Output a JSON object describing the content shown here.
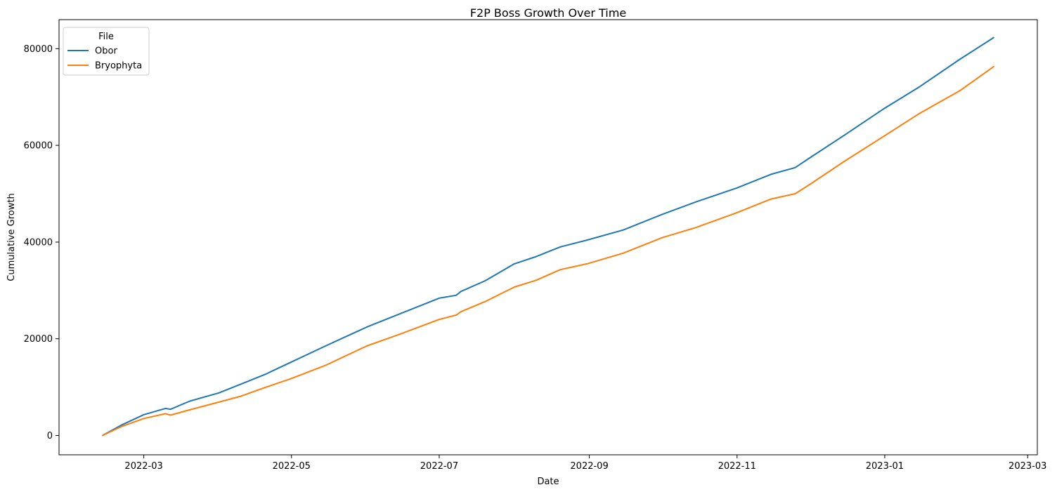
{
  "chart_data": {
    "type": "line",
    "title": "F2P Boss Growth Over Time",
    "xlabel": "Date",
    "ylabel": "Cumulative Growth",
    "xlim": [
      "2022-01-25",
      "2023-03-05"
    ],
    "ylim": [
      -4000,
      86000
    ],
    "x_ticks": [
      "2022-03",
      "2022-05",
      "2022-07",
      "2022-09",
      "2022-11",
      "2023-01",
      "2023-03"
    ],
    "y_ticks": [
      0,
      20000,
      40000,
      60000,
      80000
    ],
    "grid": false,
    "legend": {
      "title": "File",
      "placement": "top-left"
    },
    "x": [
      "2022-02-12",
      "2022-02-20",
      "2022-03-01",
      "2022-03-10",
      "2022-03-12",
      "2022-03-20",
      "2022-04-01",
      "2022-04-10",
      "2022-04-20",
      "2022-05-01",
      "2022-05-15",
      "2022-06-01",
      "2022-06-15",
      "2022-07-01",
      "2022-07-08",
      "2022-07-10",
      "2022-07-20",
      "2022-08-01",
      "2022-08-10",
      "2022-08-20",
      "2022-08-31",
      "2022-09-15",
      "2022-10-01",
      "2022-10-15",
      "2022-11-01",
      "2022-11-15",
      "2022-11-25",
      "2022-12-01",
      "2022-12-15",
      "2023-01-01",
      "2023-01-15",
      "2023-02-01",
      "2023-02-15"
    ],
    "series": [
      {
        "name": "Obor",
        "color": "#1f77b4",
        "values": [
          0,
          2200,
          4300,
          5600,
          5400,
          7100,
          8800,
          10600,
          12600,
          15200,
          18500,
          22400,
          25200,
          28400,
          29000,
          29800,
          32000,
          35500,
          37000,
          39000,
          40400,
          42500,
          45700,
          48300,
          51200,
          54000,
          55400,
          57400,
          62000,
          67700,
          72000,
          77800,
          82300
        ]
      },
      {
        "name": "Bryophyta",
        "color": "#ff7f0e",
        "values": [
          0,
          1900,
          3500,
          4500,
          4200,
          5300,
          6900,
          8100,
          9900,
          11800,
          14500,
          18500,
          21000,
          24000,
          24900,
          25600,
          27700,
          30700,
          32100,
          34300,
          35500,
          37700,
          40900,
          43000,
          46100,
          48900,
          50000,
          51900,
          56600,
          62000,
          66500,
          71300,
          76300
        ]
      }
    ]
  }
}
